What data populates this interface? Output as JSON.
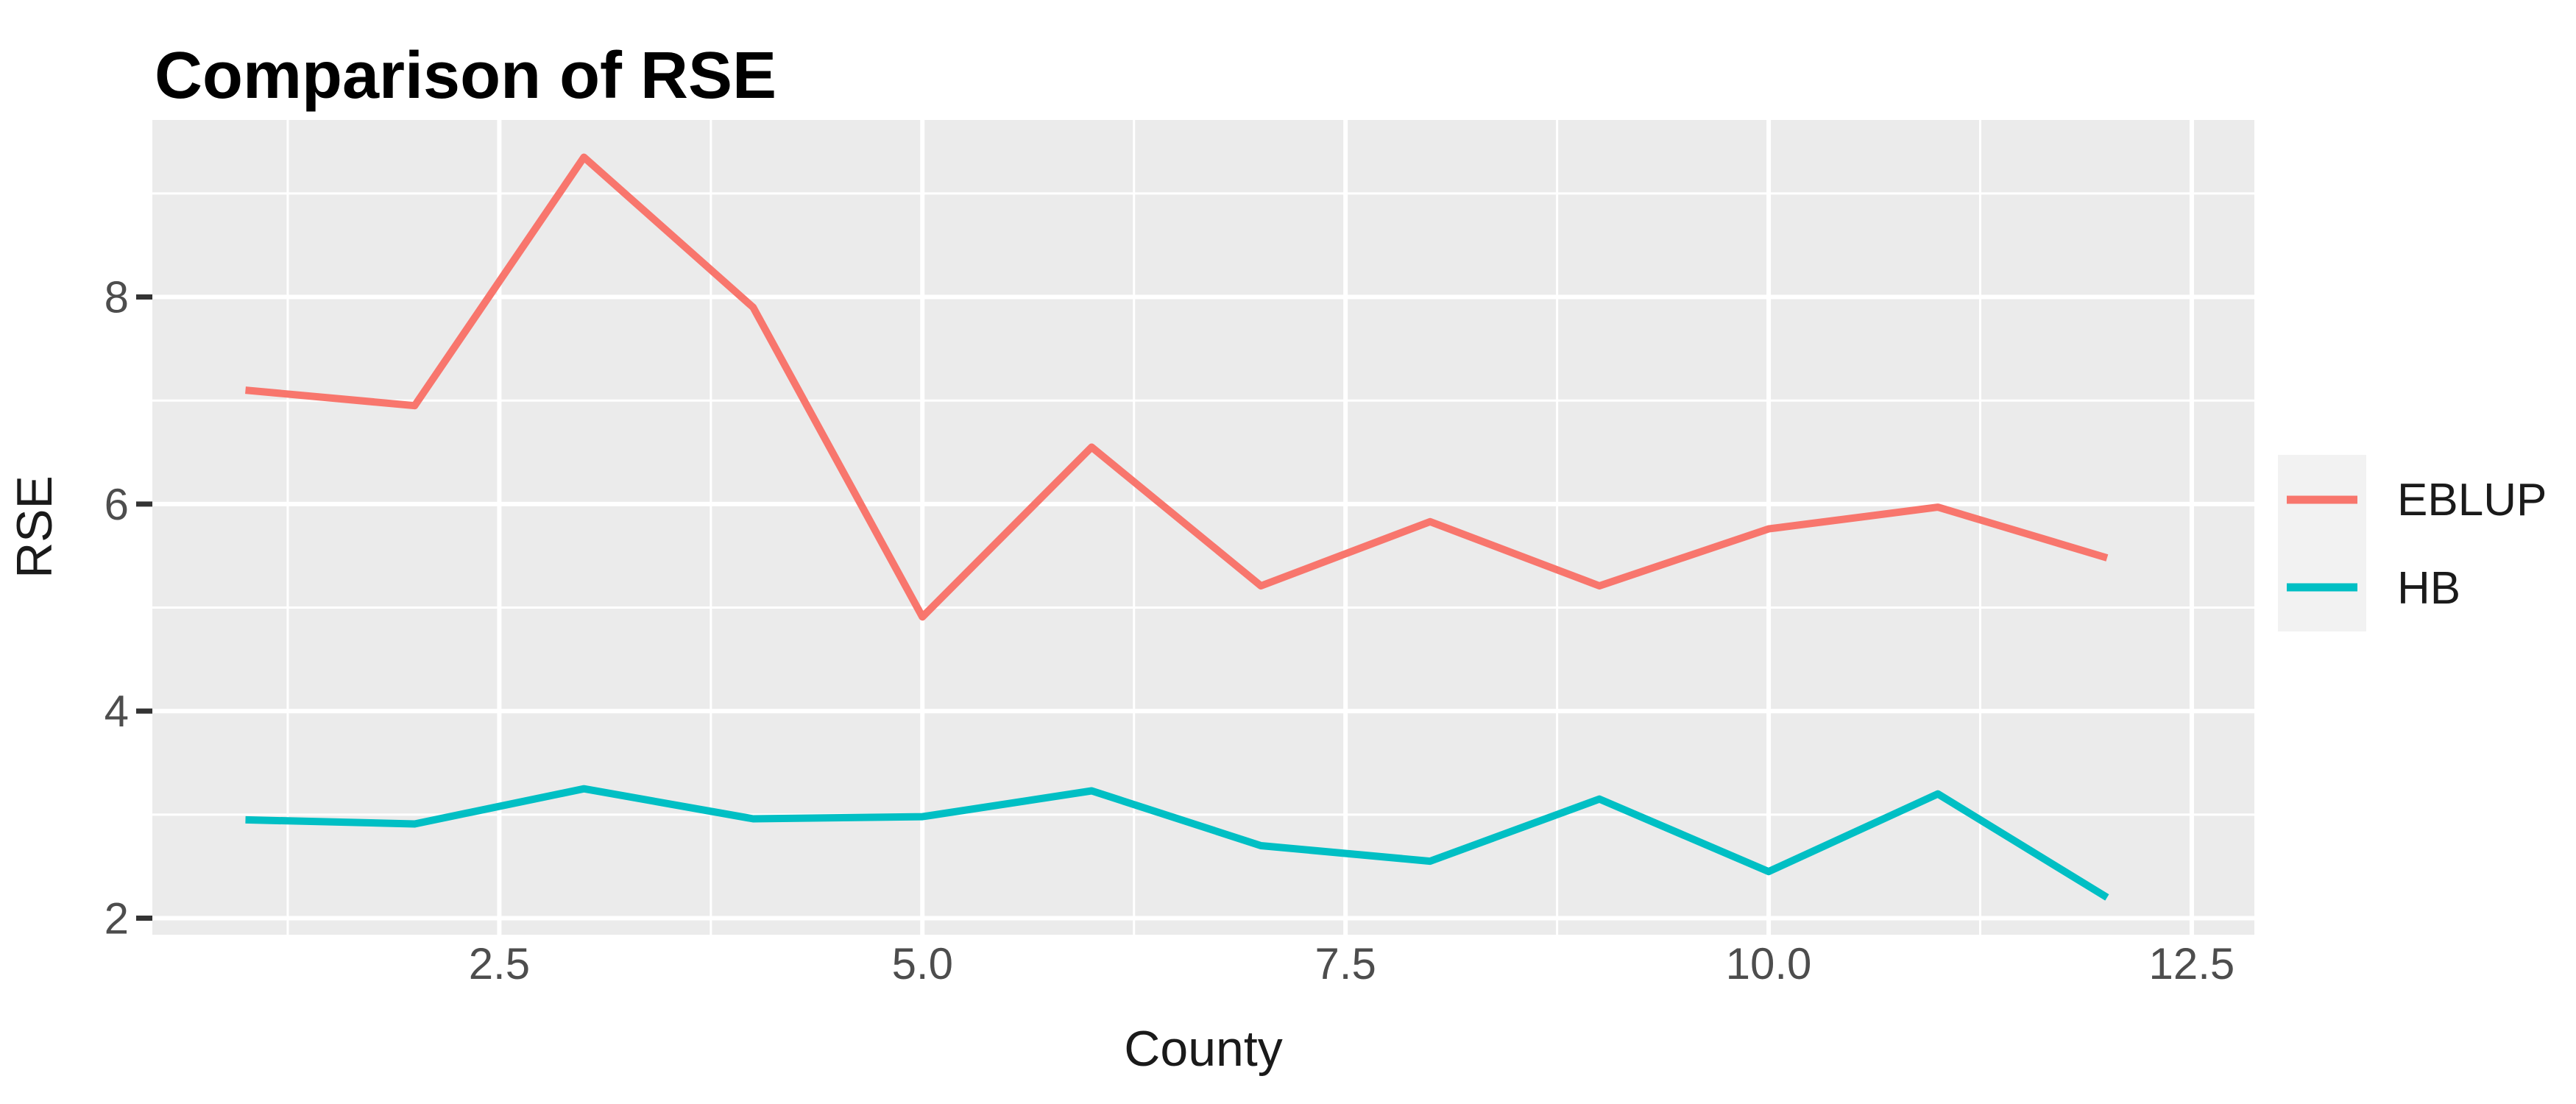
{
  "title": "Comparison of RSE",
  "colors": {
    "panel_bg": "#EBEBEB",
    "grid": "#FFFFFF",
    "tick_mark": "#333333",
    "tick_text": "#4D4D4D",
    "legend_key_bg": "#F2F2F2",
    "eblup": "#F8766D",
    "hb": "#00BFC4"
  },
  "legend": {
    "position": "right",
    "items": [
      {
        "label": "EBLUP",
        "color": "#F8766D"
      },
      {
        "label": "HB",
        "color": "#00BFC4"
      }
    ]
  },
  "chart_data": {
    "type": "line",
    "title": "Comparison of RSE",
    "xlabel": "County",
    "ylabel": "RSE",
    "x": [
      1,
      2,
      3,
      4,
      5,
      6,
      7,
      8,
      9,
      10,
      11,
      12
    ],
    "series": [
      {
        "name": "EBLUP",
        "color": "#F8766D",
        "values": [
          7.1,
          6.95,
          9.35,
          7.9,
          4.91,
          6.55,
          5.21,
          5.83,
          5.21,
          5.76,
          5.97,
          5.48
        ]
      },
      {
        "name": "HB",
        "color": "#00BFC4",
        "values": [
          2.95,
          2.91,
          3.25,
          2.96,
          2.98,
          3.23,
          2.7,
          2.55,
          3.15,
          2.45,
          3.2,
          2.2
        ]
      }
    ],
    "xlim": [
      0.45,
      12.87
    ],
    "ylim": [
      1.84,
      9.71
    ],
    "x_ticks": [
      2.5,
      5.0,
      7.5,
      10.0,
      12.5
    ],
    "x_tick_labels": [
      "2.5",
      "5.0",
      "7.5",
      "10.0",
      "12.5"
    ],
    "y_ticks": [
      2,
      4,
      6,
      8
    ],
    "y_tick_labels": [
      "2",
      "4",
      "6",
      "8"
    ],
    "x_minor_ticks": [
      1.25,
      3.75,
      6.25,
      8.75,
      11.25
    ],
    "y_minor_ticks": [
      3,
      5,
      7,
      9
    ],
    "grid": "major-and-minor",
    "legend_position": "right",
    "line_width": 10
  }
}
